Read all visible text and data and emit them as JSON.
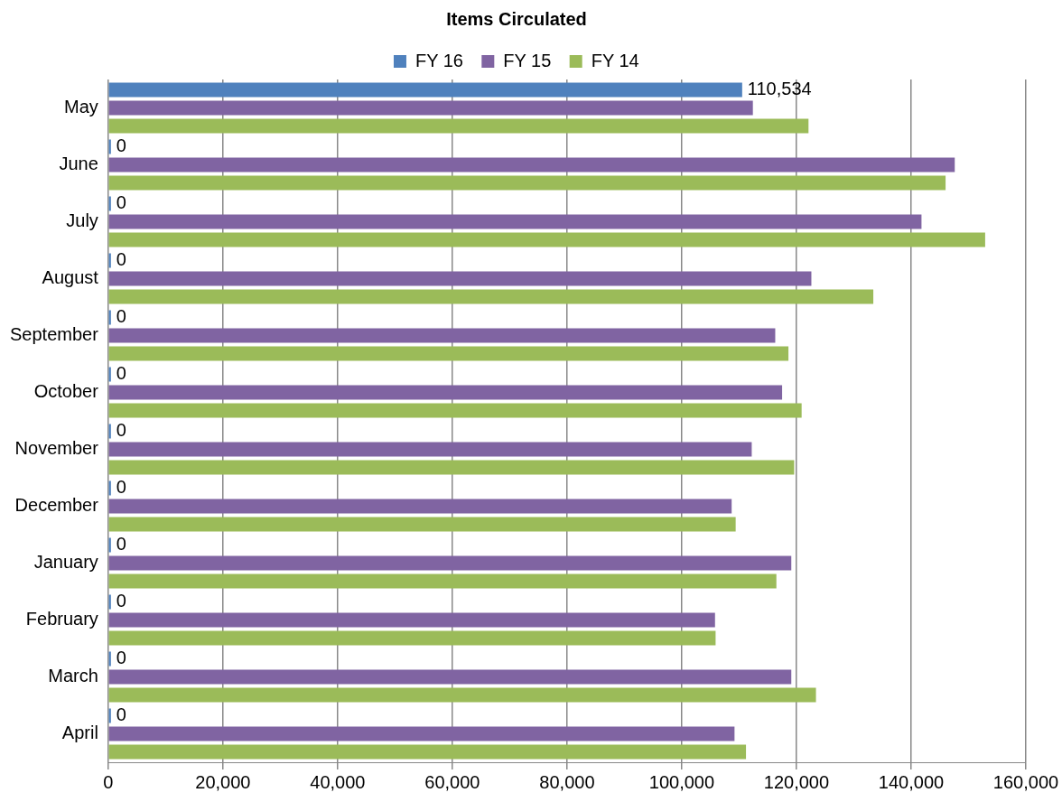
{
  "chart_data": {
    "type": "bar",
    "orientation": "horizontal",
    "title": "Items Circulated",
    "categories": [
      "May",
      "June",
      "July",
      "August",
      "September",
      "October",
      "November",
      "December",
      "January",
      "February",
      "March",
      "April"
    ],
    "series": [
      {
        "name": "FY 16",
        "color": "#4f81bd",
        "values": [
          110534,
          0,
          0,
          0,
          0,
          0,
          0,
          0,
          0,
          0,
          0,
          0
        ],
        "value_labels": [
          "110,534",
          "0",
          "0",
          "0",
          "0",
          "0",
          "0",
          "0",
          "0",
          "0",
          "0",
          "0"
        ]
      },
      {
        "name": "FY 15",
        "color": "#8064a2",
        "values": [
          112400,
          147600,
          141800,
          122600,
          116300,
          117500,
          112200,
          108700,
          119100,
          105800,
          119100,
          109200
        ]
      },
      {
        "name": "FY 14",
        "color": "#9bbb59",
        "values": [
          122100,
          146000,
          152900,
          133400,
          118600,
          120900,
          119600,
          109400,
          116500,
          105900,
          123400,
          111200
        ]
      }
    ],
    "xlim": [
      0,
      160000
    ],
    "xticks": [
      {
        "value": 0,
        "label": "0"
      },
      {
        "value": 20000,
        "label": "20,000"
      },
      {
        "value": 40000,
        "label": "40,000"
      },
      {
        "value": 60000,
        "label": "60,000"
      },
      {
        "value": 80000,
        "label": "80,000"
      },
      {
        "value": 100000,
        "label": "100,000"
      },
      {
        "value": 120000,
        "label": "120,000"
      },
      {
        "value": 140000,
        "label": "140,000"
      },
      {
        "value": 160000,
        "label": "160,000"
      }
    ],
    "grid": "x",
    "legend": "top"
  }
}
